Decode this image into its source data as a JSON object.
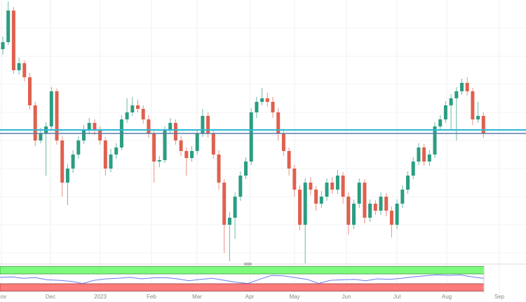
{
  "chart_data": {
    "type": "candlestick",
    "title": "",
    "xlabel": "",
    "ylabel": "",
    "grid": true,
    "colors": {
      "up": "#2a9d82",
      "down": "#e0604e",
      "level_1": "#2bb7d4",
      "level_2": "#5a7ba6",
      "indicator_line": "#6b7cf0",
      "overbought_band": "#7cfa7c",
      "oversold_band": "#ff7b7b"
    },
    "x_ticks": [
      "Nov",
      "Dec",
      "2023",
      "Feb",
      "Mar",
      "Apr",
      "May",
      "Jun",
      "Jul",
      "Aug",
      "Sep"
    ],
    "ylim": [
      0,
      400
    ],
    "horizontal_levels": [
      215,
      210
    ],
    "ohlc": [
      [
        330,
        348,
        322,
        340
      ],
      [
        340,
        398,
        336,
        385
      ],
      [
        385,
        390,
        295,
        300
      ],
      [
        300,
        318,
        294,
        310
      ],
      [
        310,
        314,
        284,
        290
      ],
      [
        290,
        296,
        244,
        250
      ],
      [
        250,
        255,
        192,
        200
      ],
      [
        200,
        218,
        196,
        210
      ],
      [
        210,
        226,
        150,
        220
      ],
      [
        220,
        276,
        215,
        270
      ],
      [
        270,
        274,
        194,
        200
      ],
      [
        200,
        206,
        120,
        140
      ],
      [
        140,
        166,
        108,
        160
      ],
      [
        160,
        186,
        154,
        180
      ],
      [
        180,
        206,
        174,
        200
      ],
      [
        200,
        222,
        195,
        215
      ],
      [
        215,
        232,
        210,
        225
      ],
      [
        225,
        230,
        208,
        215
      ],
      [
        215,
        220,
        194,
        200
      ],
      [
        200,
        205,
        150,
        160
      ],
      [
        160,
        188,
        155,
        180
      ],
      [
        180,
        196,
        174,
        190
      ],
      [
        190,
        236,
        186,
        230
      ],
      [
        230,
        260,
        225,
        240
      ],
      [
        240,
        262,
        235,
        250
      ],
      [
        250,
        258,
        240,
        245
      ],
      [
        245,
        250,
        224,
        230
      ],
      [
        230,
        236,
        204,
        210
      ],
      [
        210,
        215,
        140,
        170
      ],
      [
        170,
        178,
        162,
        172
      ],
      [
        172,
        220,
        168,
        215
      ],
      [
        215,
        232,
        210,
        225
      ],
      [
        225,
        230,
        194,
        200
      ],
      [
        200,
        206,
        178,
        185
      ],
      [
        185,
        190,
        150,
        175
      ],
      [
        175,
        192,
        170,
        185
      ],
      [
        185,
        216,
        180,
        210
      ],
      [
        210,
        245,
        205,
        235
      ],
      [
        235,
        240,
        204,
        210
      ],
      [
        210,
        215,
        174,
        180
      ],
      [
        180,
        186,
        130,
        140
      ],
      [
        140,
        145,
        40,
        80
      ],
      [
        80,
        98,
        28,
        90
      ],
      [
        90,
        126,
        60,
        120
      ],
      [
        120,
        156,
        114,
        150
      ],
      [
        150,
        176,
        145,
        170
      ],
      [
        170,
        246,
        165,
        240
      ],
      [
        240,
        262,
        232,
        255
      ],
      [
        255,
        275,
        250,
        260
      ],
      [
        260,
        268,
        248,
        255
      ],
      [
        255,
        262,
        232,
        240
      ],
      [
        240,
        246,
        200,
        210
      ],
      [
        210,
        216,
        178,
        185
      ],
      [
        185,
        190,
        150,
        160
      ],
      [
        160,
        165,
        120,
        130
      ],
      [
        130,
        136,
        72,
        80
      ],
      [
        80,
        146,
        25,
        140
      ],
      [
        140,
        148,
        122,
        130
      ],
      [
        130,
        135,
        100,
        110
      ],
      [
        110,
        128,
        104,
        120
      ],
      [
        120,
        146,
        114,
        140
      ],
      [
        140,
        148,
        124,
        130
      ],
      [
        130,
        158,
        124,
        150
      ],
      [
        150,
        155,
        110,
        120
      ],
      [
        120,
        126,
        66,
        80
      ],
      [
        80,
        116,
        74,
        110
      ],
      [
        110,
        146,
        104,
        140
      ],
      [
        140,
        145,
        82,
        90
      ],
      [
        90,
        116,
        84,
        110
      ],
      [
        110,
        115,
        94,
        100
      ],
      [
        100,
        126,
        94,
        120
      ],
      [
        120,
        125,
        92,
        100
      ],
      [
        100,
        106,
        62,
        80
      ],
      [
        80,
        116,
        74,
        110
      ],
      [
        110,
        136,
        104,
        130
      ],
      [
        130,
        156,
        124,
        150
      ],
      [
        150,
        176,
        145,
        170
      ],
      [
        170,
        196,
        165,
        190
      ],
      [
        190,
        195,
        164,
        170
      ],
      [
        170,
        186,
        164,
        180
      ],
      [
        180,
        226,
        175,
        220
      ],
      [
        220,
        236,
        215,
        230
      ],
      [
        230,
        256,
        225,
        250
      ],
      [
        250,
        266,
        215,
        260
      ],
      [
        260,
        276,
        200,
        270
      ],
      [
        270,
        288,
        265,
        282
      ],
      [
        282,
        290,
        264,
        270
      ],
      [
        270,
        275,
        222,
        230
      ],
      [
        230,
        255,
        225,
        235
      ],
      [
        235,
        240,
        204,
        210
      ]
    ],
    "indicator": {
      "ylim": [
        0,
        100
      ],
      "upper_band": 70,
      "lower_band": 30,
      "values": [
        56,
        58,
        52,
        55,
        46,
        44,
        40,
        31,
        44,
        50,
        52,
        56,
        50,
        54,
        55,
        50,
        42,
        48,
        52,
        44,
        36,
        31,
        48,
        64,
        62,
        55,
        48,
        31,
        44,
        46,
        48,
        42,
        50,
        48,
        52,
        58,
        62,
        66,
        64,
        66,
        58,
        52
      ]
    }
  }
}
